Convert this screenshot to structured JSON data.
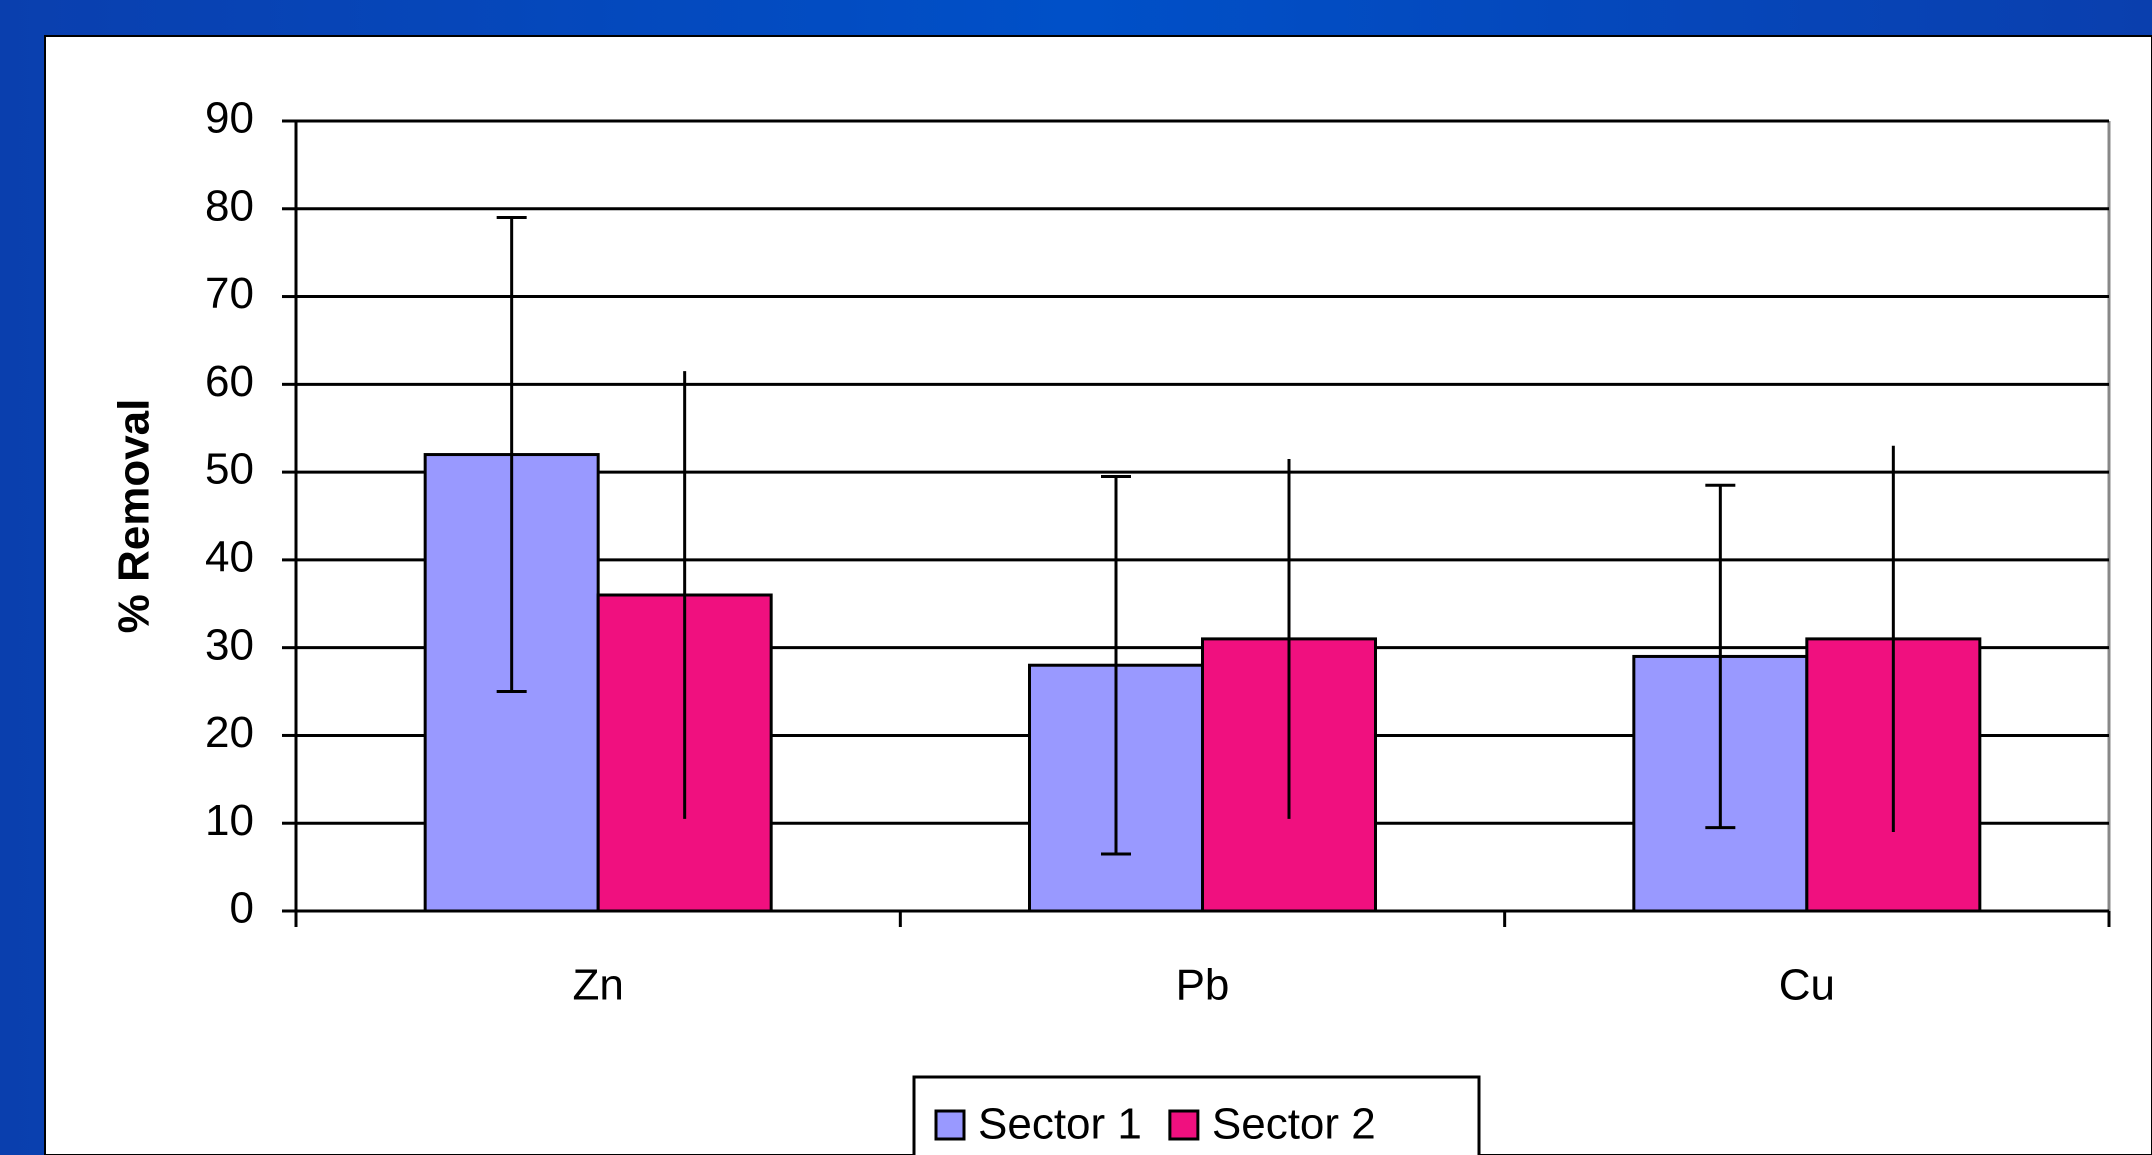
{
  "chart_data": {
    "type": "bar",
    "y_label": "% Removal",
    "categories": [
      "Zn",
      "Pb",
      "Cu"
    ],
    "series": [
      {
        "name": "Sector 1",
        "color": "#9999ff",
        "values": [
          52,
          28,
          29
        ],
        "errors": [
          27,
          21.5,
          19.5
        ],
        "error_caps": true
      },
      {
        "name": "Sector 2",
        "color": "#f0107f",
        "values": [
          36,
          31,
          31
        ],
        "errors": [
          25.5,
          20.5,
          22
        ],
        "error_caps": false
      }
    ],
    "ylim": [
      0,
      90
    ],
    "yticks": [
      0,
      10,
      20,
      30,
      40,
      50,
      60,
      70,
      80,
      90
    ],
    "grid": true,
    "legend": "bottom"
  }
}
